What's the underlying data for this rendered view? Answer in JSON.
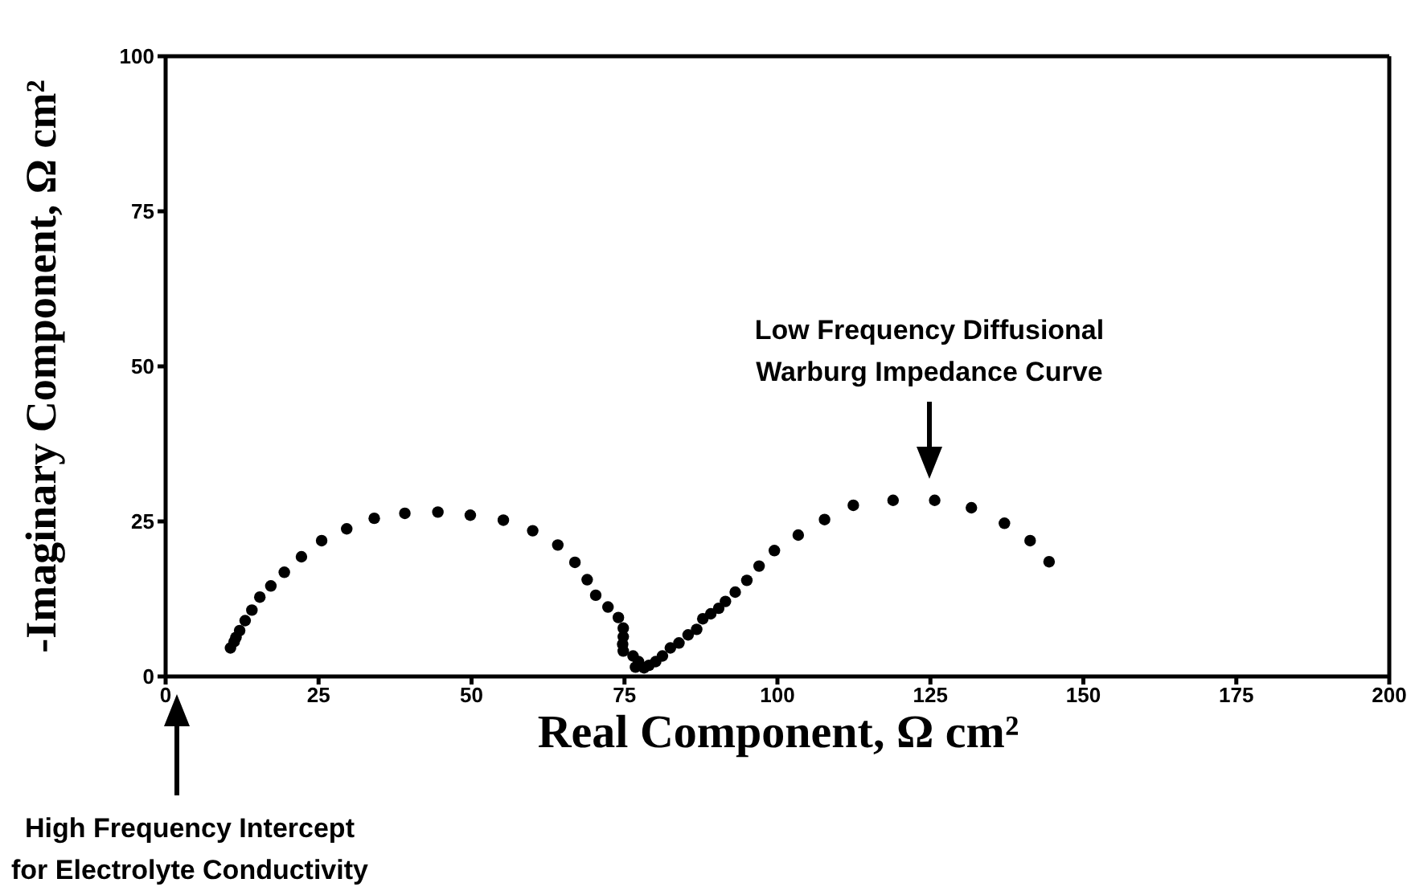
{
  "chart_data": {
    "type": "scatter",
    "xlabel": "Real Component, Ω cm²",
    "ylabel": "-Imaginary Component, Ω cm²",
    "xlim": [
      0,
      200
    ],
    "xticks": [
      0,
      25,
      50,
      75,
      100,
      125,
      150,
      175,
      200
    ],
    "ylim": [
      0,
      100
    ],
    "yticks": [
      0,
      25,
      50,
      75,
      100
    ],
    "grid": false,
    "legend": false,
    "marker": "circle",
    "annotations": [
      "Low Frequency Diffusional Warburg Impedance Curve",
      "High Frequency Intercept for Electrolyte Conductivity"
    ],
    "series": [
      {
        "color": "#000000",
        "x": [
          10.6,
          11.2,
          11.5,
          12.1,
          13.0,
          14.1,
          15.4,
          17.2,
          19.4,
          22.2,
          25.5,
          29.6,
          34.1,
          39.1,
          44.5,
          49.8,
          55.2,
          60.0,
          64.1,
          66.9,
          68.9,
          70.3,
          72.3,
          74.0,
          74.8,
          74.8,
          74.7,
          74.8,
          76.4,
          77.3,
          76.8,
          78.2,
          79.0,
          80.1,
          81.2,
          82.5,
          83.9,
          85.4,
          86.8,
          87.8,
          89.1,
          90.4,
          91.5,
          93.1,
          95.0,
          97.0,
          99.5,
          103.4,
          107.7,
          112.4,
          118.9,
          125.7,
          131.7,
          137.1,
          141.3,
          144.4
        ],
        "values": [
          4.6,
          5.6,
          6.3,
          7.4,
          9.0,
          10.7,
          12.8,
          14.6,
          16.8,
          19.3,
          21.9,
          23.8,
          25.5,
          26.3,
          26.5,
          26.0,
          25.2,
          23.5,
          21.2,
          18.4,
          15.6,
          13.1,
          11.2,
          9.5,
          7.8,
          6.4,
          5.2,
          4.1,
          3.3,
          2.4,
          1.5,
          1.4,
          1.8,
          2.4,
          3.3,
          4.6,
          5.4,
          6.7,
          7.6,
          9.3,
          10.1,
          11.0,
          12.1,
          13.6,
          15.5,
          17.8,
          20.3,
          22.8,
          25.3,
          27.6,
          28.4,
          28.4,
          27.2,
          24.7,
          21.9,
          18.5
        ]
      }
    ]
  }
}
